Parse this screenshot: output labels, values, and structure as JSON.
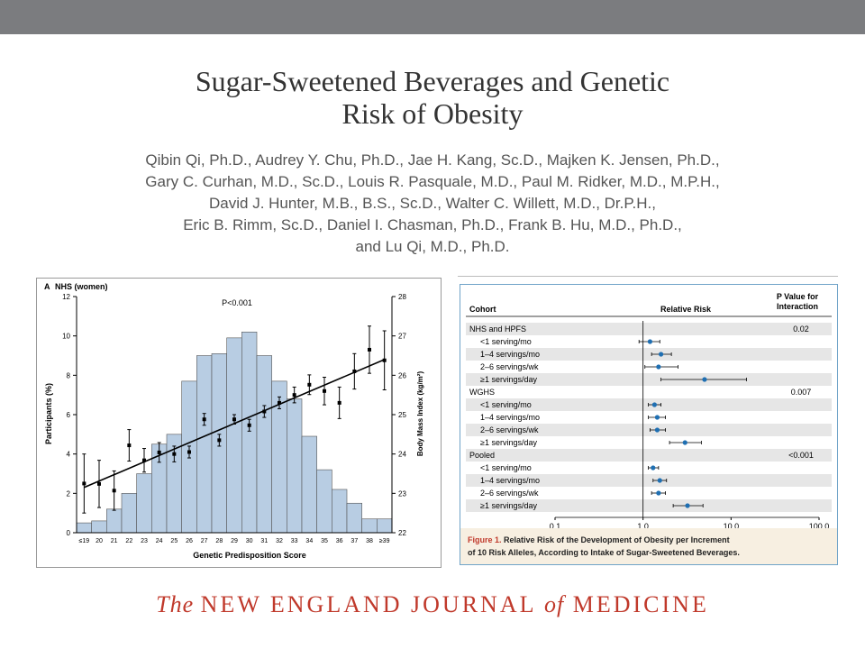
{
  "slide": {
    "title_line1": "Sugar-Sweetened Beverages and Genetic",
    "title_line2": "Risk of Obesity",
    "authors": [
      "Qibin Qi, Ph.D., Audrey Y. Chu, Ph.D., Jae H. Kang, Sc.D., Majken K. Jensen, Ph.D.,",
      "Gary C. Curhan, M.D., Sc.D., Louis R. Pasquale, M.D., Paul M. Ridker, M.D., M.P.H.,",
      "David J. Hunter, M.B., B.S., Sc.D., Walter C. Willett, M.D., Dr.P.H.,",
      "Eric B. Rimm, Sc.D., Daniel I. Chasman, Ph.D., Frank B. Hu, M.D., Ph.D.,",
      "and Lu Qi, M.D., Ph.D."
    ],
    "journal_pre": "The ",
    "journal_mid1": "NEW ENGLAND JOURNAL ",
    "journal_of": "of",
    "journal_mid2": " MEDICINE",
    "colors": {
      "topbar": "#7b7c7f",
      "journal": "#c0392b",
      "bars": "#b8cde3"
    }
  },
  "chart_data": [
    {
      "type": "bar",
      "panel_label": "A",
      "title": "NHS (women)",
      "annotation": "P<0.001",
      "xlabel": "Genetic Predisposition Score",
      "ylabel": "Participants (%)",
      "ylabel_right": "Body Mass Index (kg/m²)",
      "ylim": [
        0,
        12
      ],
      "yticks": [
        0,
        2,
        4,
        6,
        8,
        10,
        12
      ],
      "ylim_right": [
        22,
        28
      ],
      "yticks_right": [
        22,
        23,
        24,
        25,
        26,
        27,
        28
      ],
      "categories": [
        "≤19",
        "20",
        "21",
        "22",
        "23",
        "24",
        "25",
        "26",
        "27",
        "28",
        "29",
        "30",
        "31",
        "32",
        "33",
        "34",
        "35",
        "36",
        "37",
        "38",
        "≥39"
      ],
      "values": [
        0.5,
        0.6,
        1.2,
        2.0,
        3.0,
        4.5,
        5.0,
        7.7,
        9.0,
        9.1,
        9.9,
        10.2,
        9.0,
        7.7,
        6.8,
        4.9,
        3.2,
        2.2,
        1.5,
        0.7,
        0.7
      ],
      "bmi_means": [
        23.25,
        23.24,
        23.07,
        24.22,
        23.84,
        24.04,
        24.0,
        24.05,
        24.88,
        24.35,
        24.88,
        24.73,
        25.08,
        25.3,
        25.5,
        25.76,
        25.6,
        25.3,
        26.1,
        26.65,
        26.38
      ],
      "bmi_errors": [
        0.75,
        0.6,
        0.5,
        0.4,
        0.3,
        0.25,
        0.2,
        0.15,
        0.15,
        0.15,
        0.12,
        0.15,
        0.15,
        0.15,
        0.2,
        0.25,
        0.35,
        0.4,
        0.45,
        0.6,
        0.75
      ],
      "trend_line": [
        23.15,
        26.4
      ]
    },
    {
      "type": "forest",
      "header_cohort": "Cohort",
      "header_rr": "Relative Risk",
      "header_p": "P Value for Interaction",
      "xscale": "log",
      "xlim": [
        0.1,
        100
      ],
      "xticks": [
        "0.1",
        "1.0",
        "10.0",
        "100.0"
      ],
      "reference_line": 1.0,
      "groups": [
        {
          "name": "NHS and HPFS",
          "p": "0.02",
          "rows": [
            {
              "label": "<1 serving/mo",
              "rr": 1.2,
              "lo": 0.9,
              "hi": 1.55
            },
            {
              "label": "1–4 servings/mo",
              "rr": 1.6,
              "lo": 1.25,
              "hi": 2.1
            },
            {
              "label": "2–6 servings/wk",
              "rr": 1.5,
              "lo": 1.05,
              "hi": 2.5
            },
            {
              "label": "≥1 servings/day",
              "rr": 5.0,
              "lo": 1.6,
              "hi": 15.0
            }
          ]
        },
        {
          "name": "WGHS",
          "p": "0.007",
          "rows": [
            {
              "label": "<1 serving/mo",
              "rr": 1.35,
              "lo": 1.15,
              "hi": 1.6
            },
            {
              "label": "1–4 servings/mo",
              "rr": 1.45,
              "lo": 1.15,
              "hi": 1.8
            },
            {
              "label": "2–6 servings/wk",
              "rr": 1.45,
              "lo": 1.2,
              "hi": 1.8
            },
            {
              "label": "≥1 servings/day",
              "rr": 3.0,
              "lo": 2.0,
              "hi": 4.6
            }
          ]
        },
        {
          "name": "Pooled",
          "p": "<0.001",
          "rows": [
            {
              "label": "<1 serving/mo",
              "rr": 1.3,
              "lo": 1.15,
              "hi": 1.5
            },
            {
              "label": "1–4 servings/mo",
              "rr": 1.55,
              "lo": 1.3,
              "hi": 1.85
            },
            {
              "label": "2–6 servings/wk",
              "rr": 1.5,
              "lo": 1.25,
              "hi": 1.8
            },
            {
              "label": "≥1 servings/day",
              "rr": 3.2,
              "lo": 2.2,
              "hi": 4.8
            }
          ]
        }
      ],
      "caption_label": "Figure 1.",
      "caption_text": " Relative Risk of the Development of Obesity per Increment",
      "caption_line2": "of 10 Risk Alleles, According to Intake of Sugar-Sweetened Beverages."
    }
  ]
}
